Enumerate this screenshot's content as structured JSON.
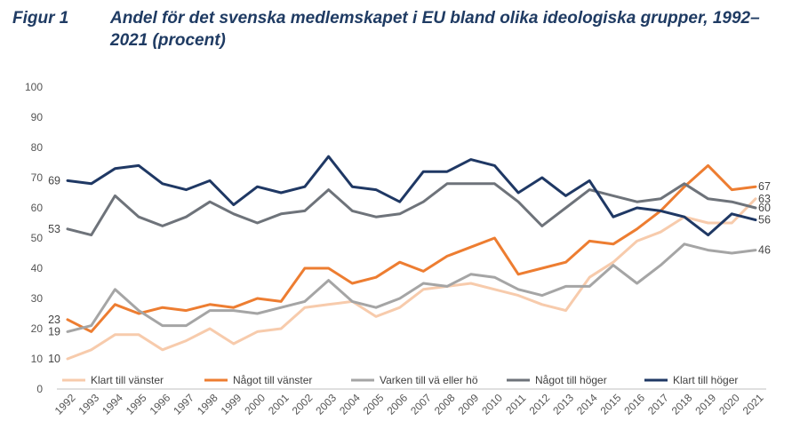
{
  "figure": {
    "label": "Figur 1",
    "title": "Andel för det svenska medlemskapet i EU bland olika ideologiska grupper, 1992–2021 (procent)"
  },
  "chart_data": {
    "type": "line",
    "title": "Andel för det svenska medlemskapet i EU bland olika ideologiska grupper, 1992–2021 (procent)",
    "xlabel": "",
    "ylabel": "",
    "ylim": [
      0,
      100
    ],
    "yticks": [
      0,
      10,
      20,
      30,
      40,
      50,
      60,
      70,
      80,
      90,
      100
    ],
    "grid": false,
    "legend_position": "bottom",
    "categories": [
      "1992",
      "1993",
      "1994",
      "1995",
      "1996",
      "1997",
      "1998",
      "1999",
      "2000",
      "2001",
      "2002",
      "2003",
      "2004",
      "2005",
      "2006",
      "2007",
      "2008",
      "2009",
      "2010",
      "2011",
      "2012",
      "2013",
      "2014",
      "2015",
      "2016",
      "2017",
      "2018",
      "2019",
      "2020",
      "2021"
    ],
    "series": [
      {
        "name": "Klart till vänster",
        "color": "#f7cbac",
        "values": [
          10,
          13,
          18,
          18,
          13,
          16,
          20,
          15,
          19,
          20,
          27,
          28,
          29,
          24,
          27,
          33,
          34,
          35,
          33,
          31,
          28,
          26,
          37,
          42,
          49,
          52,
          57,
          55,
          55,
          63
        ]
      },
      {
        "name": "Något till vänster",
        "color": "#ed7d31",
        "values": [
          23,
          19,
          28,
          25,
          27,
          26,
          28,
          27,
          30,
          29,
          40,
          40,
          35,
          37,
          42,
          39,
          44,
          47,
          50,
          38,
          40,
          42,
          49,
          48,
          53,
          59,
          67,
          74,
          66,
          67
        ]
      },
      {
        "name": "Varken till vä eller hö",
        "color": "#a5a5a5",
        "values": [
          19,
          21,
          33,
          26,
          21,
          21,
          26,
          26,
          25,
          27,
          29,
          36,
          29,
          27,
          30,
          35,
          34,
          38,
          37,
          33,
          31,
          34,
          34,
          41,
          35,
          41,
          48,
          46,
          45,
          46
        ]
      },
      {
        "name": "Något till höger",
        "color": "#6e737a",
        "values": [
          53,
          51,
          64,
          57,
          54,
          57,
          62,
          58,
          55,
          58,
          59,
          66,
          59,
          57,
          58,
          62,
          68,
          68,
          68,
          62,
          54,
          60,
          66,
          64,
          62,
          63,
          68,
          63,
          62,
          60
        ]
      },
      {
        "name": "Klart till höger",
        "color": "#1f3864",
        "values": [
          69,
          68,
          73,
          74,
          68,
          66,
          69,
          61,
          67,
          65,
          67,
          77,
          67,
          66,
          62,
          72,
          72,
          76,
          74,
          65,
          70,
          64,
          69,
          57,
          60,
          59,
          57,
          51,
          58,
          56
        ]
      }
    ],
    "data_labels": [
      {
        "series": "Klart till höger",
        "category": "1992",
        "text": "69"
      },
      {
        "series": "Något till höger",
        "category": "1992",
        "text": "53"
      },
      {
        "series": "Något till vänster",
        "category": "1992",
        "text": "23"
      },
      {
        "series": "Varken till vä eller hö",
        "category": "1992",
        "text": "19"
      },
      {
        "series": "Klart till vänster",
        "category": "1992",
        "text": "10"
      },
      {
        "series": "Något till vänster",
        "category": "2021",
        "text": "67"
      },
      {
        "series": "Klart till vänster",
        "category": "2021",
        "text": "63"
      },
      {
        "series": "Något till höger",
        "category": "2021",
        "text": "60"
      },
      {
        "series": "Klart till höger",
        "category": "2021",
        "text": "56"
      },
      {
        "series": "Varken till vä eller hö",
        "category": "2021",
        "text": "46"
      }
    ]
  }
}
